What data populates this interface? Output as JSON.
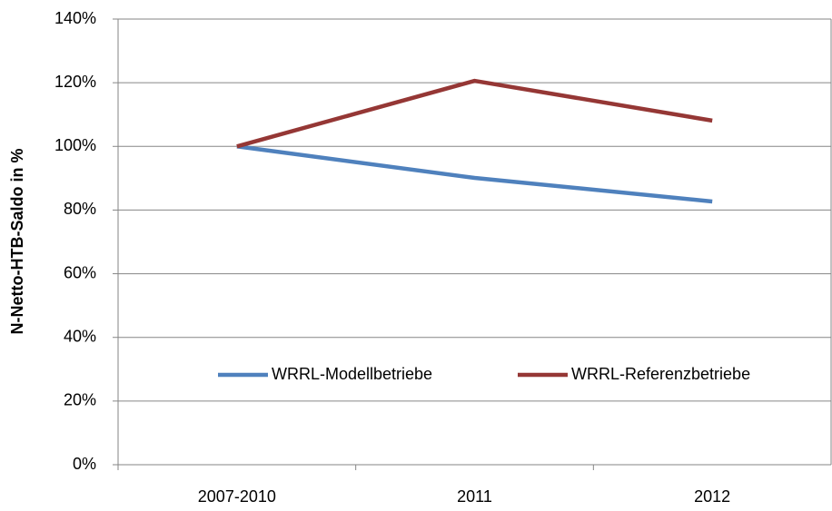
{
  "chart_data": {
    "type": "line",
    "y_label": "N-Netto-HTB-Saldo in %",
    "categories": [
      "2007-2010",
      "2011",
      "2012"
    ],
    "series": [
      {
        "name": "WRRL-Modellbetriebe",
        "color": "#4f81bd",
        "values": [
          100,
          90.1,
          82.7
        ]
      },
      {
        "name": "WRRL-Referenzbetriebe",
        "color": "#953735",
        "values": [
          100,
          120.6,
          108.1
        ]
      }
    ],
    "ylim": [
      0,
      140
    ],
    "yticks": [
      {
        "value": 0,
        "label": "0%"
      },
      {
        "value": 20,
        "label": "20%"
      },
      {
        "value": 40,
        "label": "40%"
      },
      {
        "value": 60,
        "label": "60%"
      },
      {
        "value": 80,
        "label": "80%"
      },
      {
        "value": 100,
        "label": "100%"
      },
      {
        "value": 120,
        "label": "120%"
      },
      {
        "value": 140,
        "label": "140%"
      }
    ],
    "grid": true,
    "legend": "lower center"
  }
}
